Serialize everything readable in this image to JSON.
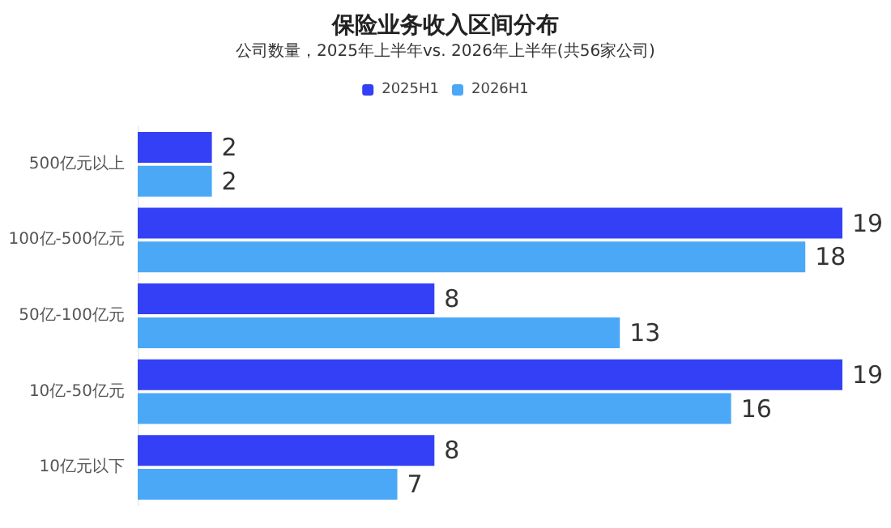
{
  "chart_data": {
    "type": "bar",
    "orientation": "horizontal",
    "title": "保险业务收入区间分布",
    "subtitle": "公司数量，2025年上半年vs. 2026年上半年(共56家公司)",
    "categories": [
      "500亿元以上",
      "100亿-500亿元",
      "50亿-100亿元",
      "10亿-50亿元",
      "10亿元以下"
    ],
    "series": [
      {
        "name": "2025H1",
        "color": "#3340f5",
        "values": [
          2,
          19,
          8,
          19,
          8
        ]
      },
      {
        "name": "2026H1",
        "color": "#4aa8f7",
        "values": [
          2,
          18,
          13,
          16,
          7
        ]
      }
    ],
    "data_labels": true,
    "legend": "top"
  }
}
